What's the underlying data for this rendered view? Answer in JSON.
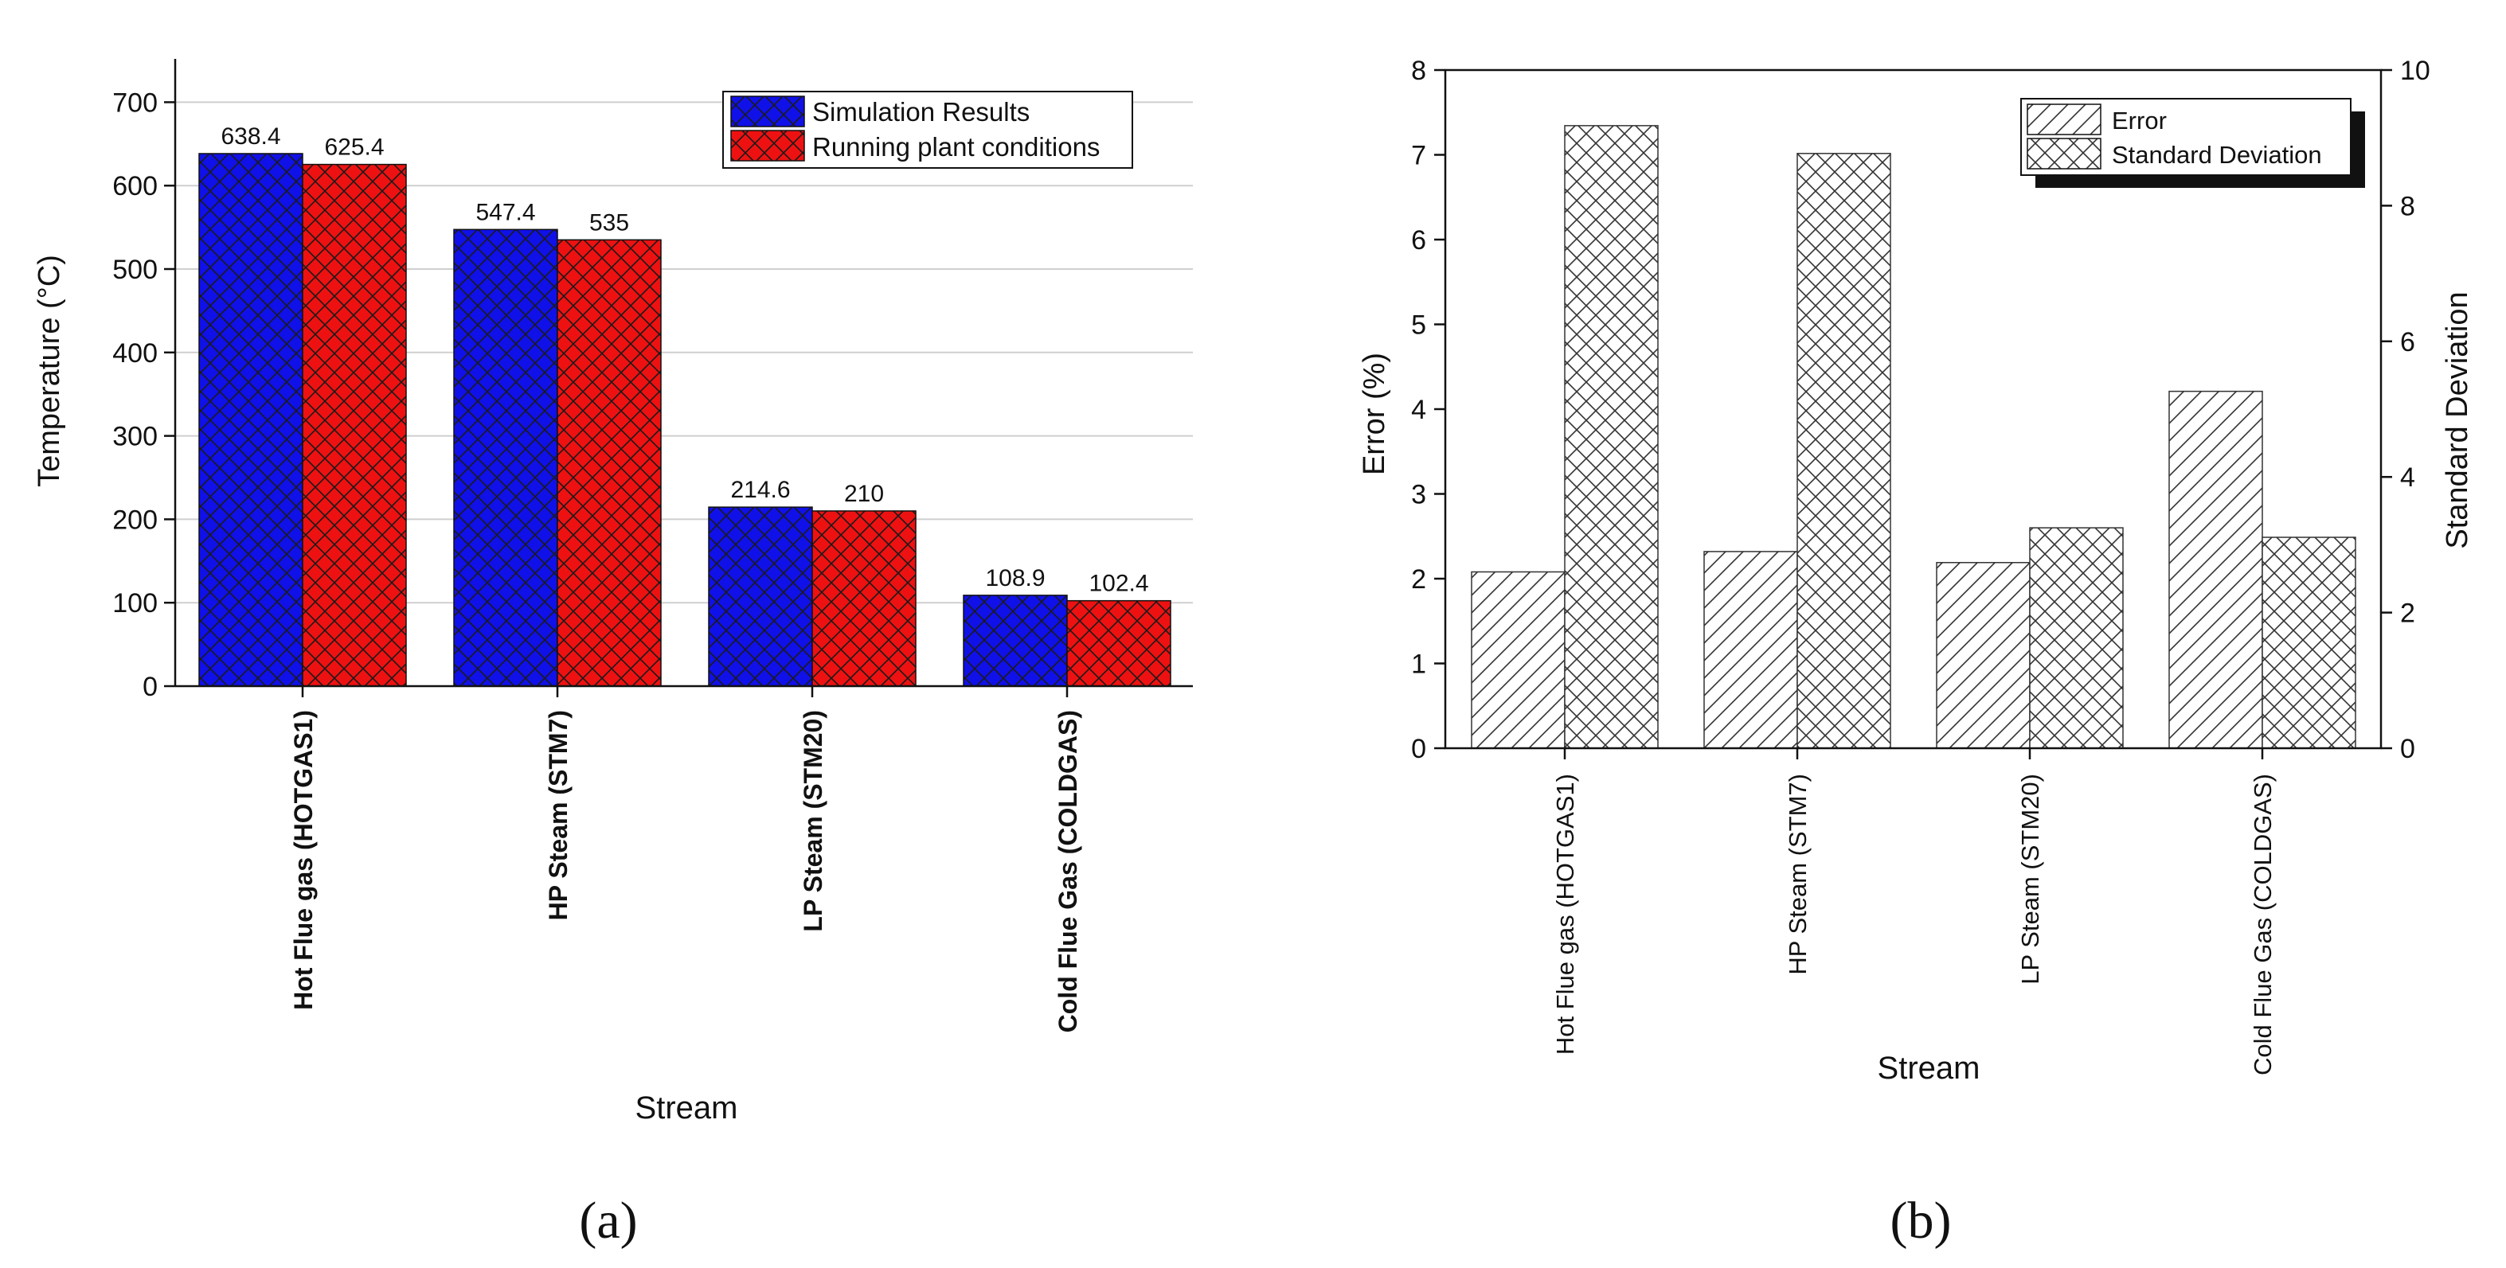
{
  "colors": {
    "simulation": "#1010e8",
    "plant": "#ee1111",
    "pattern_ink": "#1a1a1a",
    "grid": "#cfcfcf",
    "axis": "#111111"
  },
  "chart_data": [
    {
      "type": "bar",
      "panel_label": "(a)",
      "categories": [
        "Hot Flue gas (HOTGAS1)",
        "HP Steam (STM7)",
        "LP Steam (STM20)",
        "Cold Flue Gas (COLDGAS)"
      ],
      "xlabel": "Stream",
      "ylabel": "Temperature (°C)",
      "ylim": [
        0,
        750
      ],
      "yticks": [
        0,
        100,
        200,
        300,
        400,
        500,
        600,
        700
      ],
      "grid": true,
      "legend_position": "top-right",
      "series": [
        {
          "name": "Simulation Results",
          "values": [
            638.4,
            547.4,
            214.6,
            108.9
          ],
          "data_labels": [
            "638.4",
            "547.4",
            "214.6",
            "108.9"
          ],
          "fill": "crosshatch-blue"
        },
        {
          "name": "Running plant conditions",
          "values": [
            625.4,
            535,
            210,
            102.4
          ],
          "data_labels": [
            "625.4",
            "535",
            "210",
            "102.4"
          ],
          "fill": "crosshatch-red"
        }
      ]
    },
    {
      "type": "bar",
      "panel_label": "(b)",
      "categories": [
        "Hot Flue gas (HOTGAS1)",
        "HP Steam (STM7)",
        "LP Steam (STM20)",
        "Cold Flue Gas (COLDGAS)"
      ],
      "xlabel": "Stream",
      "ylabel": "Error (%)",
      "ylim": [
        0,
        8
      ],
      "yticks": [
        0,
        1,
        2,
        3,
        4,
        5,
        6,
        7,
        8
      ],
      "y2label": "Standard Deviation",
      "y2lim": [
        0,
        10
      ],
      "y2ticks": [
        0,
        2,
        4,
        6,
        8,
        10
      ],
      "grid": false,
      "legend_position": "top-right",
      "series": [
        {
          "name": "Error",
          "axis": "left",
          "values": [
            2.08,
            2.32,
            2.19,
            4.21
          ],
          "fill": "diagonal-hatch"
        },
        {
          "name": "Standard Deviation",
          "axis": "right",
          "values": [
            9.18,
            8.77,
            3.25,
            3.11
          ],
          "fill": "crosshatch"
        }
      ]
    }
  ]
}
